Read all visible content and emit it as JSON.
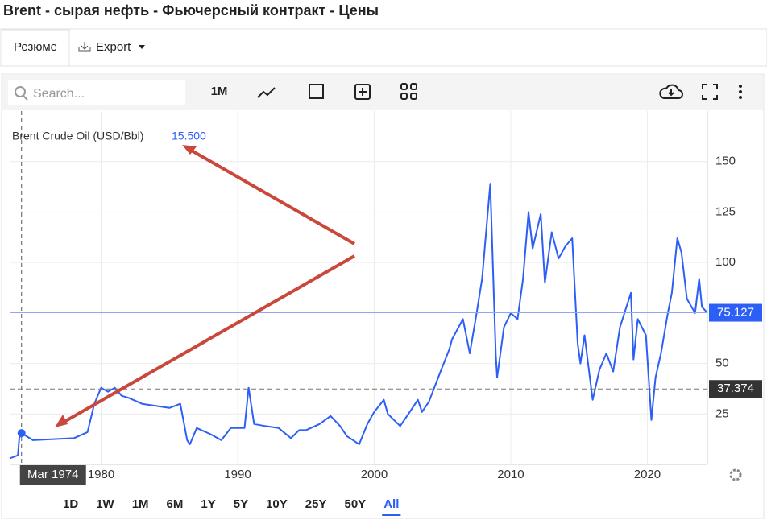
{
  "header": {
    "title": "Brent - сырая нефть - Фьючерсный контракт - Цены"
  },
  "tabs": [
    "Резюме",
    "Export"
  ],
  "toolbar": {
    "search": "Search...",
    "interval": "1M"
  },
  "chart_data": {
    "type": "line",
    "legend_title": "Brent Crude Oil (USD/Bbl)",
    "x": [
      1973.3,
      1973.9,
      1974.0,
      1974.17,
      1975,
      1978,
      1979.0,
      1979.5,
      1980,
      1980.5,
      1981,
      1981.5,
      1982,
      1983,
      1984,
      1985,
      1985.8,
      1986.3,
      1986.5,
      1987,
      1988,
      1988.8,
      1989.5,
      1990.5,
      1990.8,
      1991.2,
      1992,
      1993,
      1993.9,
      1994.5,
      1995,
      1996,
      1996.8,
      1997.5,
      1998,
      1998.9,
      1999.5,
      2000,
      2000.7,
      2001,
      2001.9,
      2002.5,
      2003.2,
      2003.5,
      2004,
      2004.8,
      2005.5,
      2005.7,
      2006.5,
      2007,
      2007.5,
      2007.9,
      2008.5,
      2008.9,
      2009.0,
      2009.5,
      2010,
      2010.5,
      2010.9,
      2011.3,
      2011.6,
      2012.2,
      2012.5,
      2013,
      2013.5,
      2014,
      2014.5,
      2014.9,
      2015.1,
      2015.4,
      2016.0,
      2016.5,
      2017,
      2017.5,
      2018,
      2018.8,
      2018.99,
      2019.3,
      2019.9,
      2020.3,
      2020.6,
      2021,
      2021.5,
      2021.8,
      2022.2,
      2022.5,
      2022.9,
      2023.5,
      2023.8,
      2024,
      2024.4
    ],
    "series": [
      {
        "name": "Brent Crude Oil",
        "color": "#2c5ff6",
        "values": [
          3,
          4.5,
          13,
          15.5,
          12,
          13,
          16,
          30,
          38,
          36,
          38,
          34,
          33,
          30,
          29,
          28,
          30,
          12,
          10,
          18,
          15,
          12,
          18,
          18,
          38,
          20,
          19,
          18,
          13,
          17,
          17,
          20,
          24,
          19,
          14,
          10,
          20,
          26,
          32,
          25,
          19,
          25,
          32,
          26,
          31,
          45,
          57,
          62,
          72,
          55,
          75,
          92,
          139,
          55,
          43,
          68,
          75,
          72,
          92,
          125,
          107,
          124,
          90,
          115,
          102,
          108,
          112,
          60,
          50,
          64,
          32,
          47,
          55,
          46,
          68,
          85,
          52,
          72,
          64,
          22,
          43,
          55,
          75,
          85,
          112,
          105,
          82,
          75,
          92,
          78,
          75.127
        ]
      }
    ],
    "xlim": [
      1973.3,
      2024.4
    ],
    "ylim": [
      0,
      175
    ],
    "xticks": [
      1980,
      1990,
      2000,
      2010,
      2020
    ],
    "yticks": [
      25,
      50,
      100,
      125,
      150
    ],
    "last_price": 75.127,
    "crosshair": {
      "label": "Mar 1974",
      "value": 15.5,
      "value_label": "15.500",
      "price": 37.374
    },
    "ranges": [
      "1D",
      "1W",
      "1M",
      "6M",
      "1Y",
      "5Y",
      "10Y",
      "25Y",
      "50Y",
      "All"
    ],
    "active_range": "All"
  }
}
